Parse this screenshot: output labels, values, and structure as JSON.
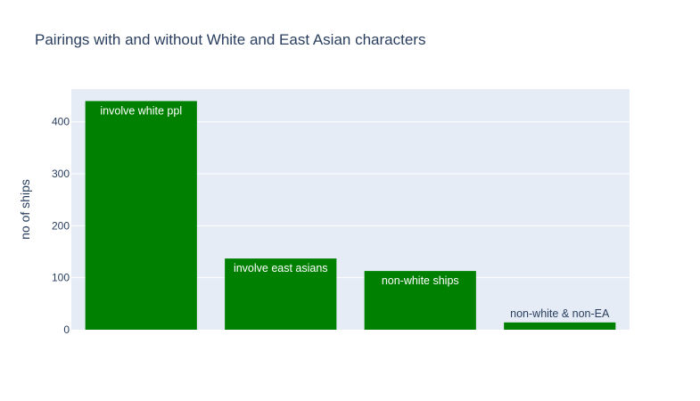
{
  "chart_data": {
    "type": "bar",
    "title": "Pairings with and without White and East Asian characters",
    "xlabel": "",
    "ylabel": "no of ships",
    "categories": [
      "involve white ppl",
      "involve east asians",
      "non-white ships",
      "non-white & non-EA"
    ],
    "values": [
      440,
      137,
      113,
      14
    ],
    "ylim": [
      0,
      463
    ],
    "yticks": [
      0,
      100,
      200,
      300,
      400
    ],
    "grid": true,
    "legend": "none",
    "bar_labels": [
      "involve white ppl",
      "involve east asians",
      "non-white ships",
      "non-white & non-EA"
    ]
  },
  "colors": {
    "bar": "#008000",
    "plot_background": "#e5ecf6",
    "grid": "#ffffff",
    "text": "#2a3f5f",
    "label_inside": "#ffffff",
    "label_outside": "#2a3f5f"
  }
}
